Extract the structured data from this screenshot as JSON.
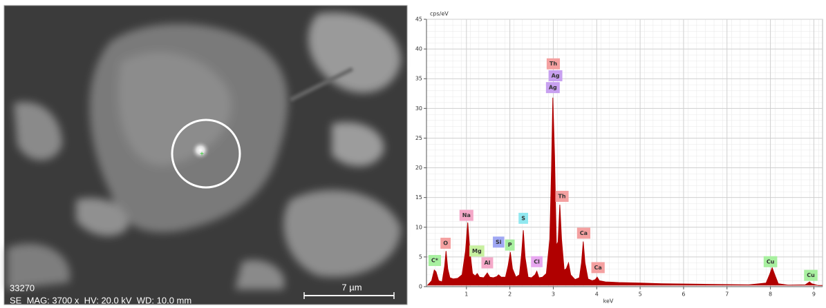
{
  "sem_image": {
    "image_id": "33270",
    "info": "SE  MAG: 3700 x  HV: 20.0 kV  WD: 10.0 mm",
    "scale_bar": "7 µm"
  },
  "chart_data": {
    "type": "area",
    "x_label": "keV",
    "y_label": "cps/eV",
    "color": "#b00000",
    "x": [
      0.1,
      0.2,
      0.26,
      0.3,
      0.36,
      0.44,
      0.5,
      0.53,
      0.57,
      0.62,
      0.7,
      0.8,
      0.9,
      0.98,
      1.03,
      1.08,
      1.14,
      1.2,
      1.25,
      1.3,
      1.4,
      1.48,
      1.54,
      1.62,
      1.7,
      1.74,
      1.8,
      1.9,
      1.96,
      2.01,
      2.06,
      2.14,
      2.22,
      2.27,
      2.31,
      2.35,
      2.42,
      2.5,
      2.58,
      2.62,
      2.67,
      2.75,
      2.84,
      2.92,
      2.96,
      2.99,
      3.03,
      3.07,
      3.11,
      3.15,
      3.19,
      3.25,
      3.3,
      3.35,
      3.4,
      3.5,
      3.6,
      3.65,
      3.69,
      3.73,
      3.8,
      3.9,
      3.97,
      4.01,
      4.06,
      4.2,
      4.5,
      5.0,
      5.5,
      6.0,
      6.5,
      7.0,
      7.5,
      7.9,
      7.98,
      8.04,
      8.1,
      8.18,
      8.4,
      8.8,
      8.9,
      8.95,
      9.1,
      9.2
    ],
    "values": [
      0.2,
      1.0,
      2.8,
      2.5,
      1.0,
      0.8,
      3.5,
      6.0,
      3.0,
      1.5,
      1.3,
      1.4,
      2.0,
      6.0,
      10.8,
      6.0,
      2.2,
      1.8,
      2.2,
      1.6,
      1.5,
      2.3,
      1.6,
      1.5,
      1.7,
      2.0,
      1.6,
      1.6,
      3.5,
      5.8,
      3.0,
      1.6,
      2.0,
      5.5,
      9.5,
      5.0,
      1.6,
      1.5,
      2.0,
      2.6,
      1.5,
      1.6,
      2.2,
      8.0,
      20.0,
      31.8,
      22.0,
      7.0,
      7.5,
      13.8,
      8.0,
      2.8,
      3.0,
      4.0,
      2.0,
      1.2,
      1.5,
      4.0,
      7.6,
      4.0,
      1.3,
      1.0,
      1.2,
      1.6,
      1.0,
      0.8,
      0.7,
      0.6,
      0.5,
      0.45,
      0.4,
      0.35,
      0.3,
      0.6,
      2.0,
      3.2,
      2.0,
      0.5,
      0.25,
      0.3,
      0.8,
      0.5,
      0.2,
      0.2
    ],
    "xlim": [
      0.08,
      9.2
    ],
    "ylim": [
      0,
      45
    ],
    "xticks": [
      1,
      2,
      3,
      4,
      5,
      6,
      7,
      8,
      9
    ],
    "yticks": [
      0,
      5,
      10,
      15,
      20,
      25,
      30,
      35,
      40,
      45
    ],
    "grid": true,
    "peak_labels": [
      {
        "label": "C*",
        "x": 0.27,
        "y": 4.4,
        "color": "#a8f0a0"
      },
      {
        "label": "O",
        "x": 0.52,
        "y": 7.3,
        "color": "#f4a0a0"
      },
      {
        "label": "Na",
        "x": 1.0,
        "y": 12.0,
        "color": "#f4a8c8"
      },
      {
        "label": "Mg",
        "x": 1.24,
        "y": 6.0,
        "color": "#c8f0a0"
      },
      {
        "label": "Al",
        "x": 1.48,
        "y": 4.0,
        "color": "#f4a8c8"
      },
      {
        "label": "Si",
        "x": 1.74,
        "y": 7.5,
        "color": "#a0a8f4"
      },
      {
        "label": "P",
        "x": 2.0,
        "y": 7.0,
        "color": "#a8f0a0"
      },
      {
        "label": "S",
        "x": 2.31,
        "y": 11.5,
        "color": "#90e8f0"
      },
      {
        "label": "Cl",
        "x": 2.62,
        "y": 4.2,
        "color": "#e8a8f0"
      },
      {
        "label": "Ag",
        "x": 2.99,
        "y": 33.5,
        "color": "#c8a0f0"
      },
      {
        "label": "Ag",
        "x": 3.05,
        "y": 35.5,
        "color": "#c8a0f0"
      },
      {
        "label": "Th",
        "x": 3.0,
        "y": 37.5,
        "color": "#f4a0a0"
      },
      {
        "label": "Th",
        "x": 3.2,
        "y": 15.2,
        "color": "#f4a0a0"
      },
      {
        "label": "Ca",
        "x": 3.7,
        "y": 9.0,
        "color": "#f4a0a0"
      },
      {
        "label": "Ca",
        "x": 4.03,
        "y": 3.2,
        "color": "#f4a0a0"
      },
      {
        "label": "Cu",
        "x": 8.0,
        "y": 4.2,
        "color": "#a8f0a0"
      },
      {
        "label": "Cu",
        "x": 8.93,
        "y": 1.9,
        "color": "#a8f0a0"
      }
    ]
  }
}
